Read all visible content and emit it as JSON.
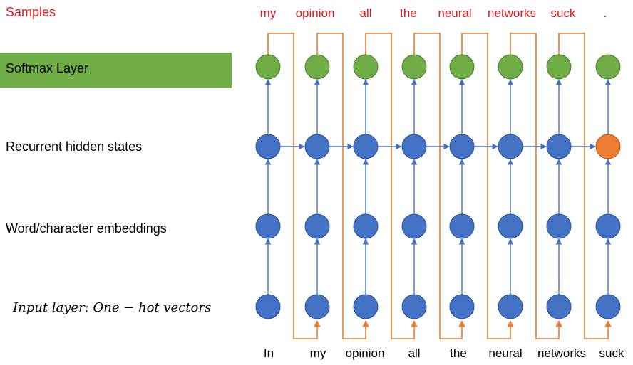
{
  "labels": {
    "samples": "Samples",
    "softmax": "Softmax Layer",
    "hidden": "Recurrent hidden states",
    "embeddings": "Word/character embeddings",
    "input": "Input layer: One − hot vectors"
  },
  "samples": [
    "my",
    "opinion",
    "all",
    "the",
    "neural",
    "networks",
    "suck",
    "."
  ],
  "inputs": [
    "In",
    "my",
    "opinion",
    "all",
    "the",
    "neural",
    "networks",
    "suck"
  ],
  "colors": {
    "sample_text": "#e31a1c",
    "softmax_node": "#70ad47",
    "hidden_node": "#4472c4",
    "final_hidden_node": "#ed7d31",
    "feedback_line": "#ed7d31",
    "arrow": "#4472c4",
    "softmax_band": "#70ad47"
  }
}
